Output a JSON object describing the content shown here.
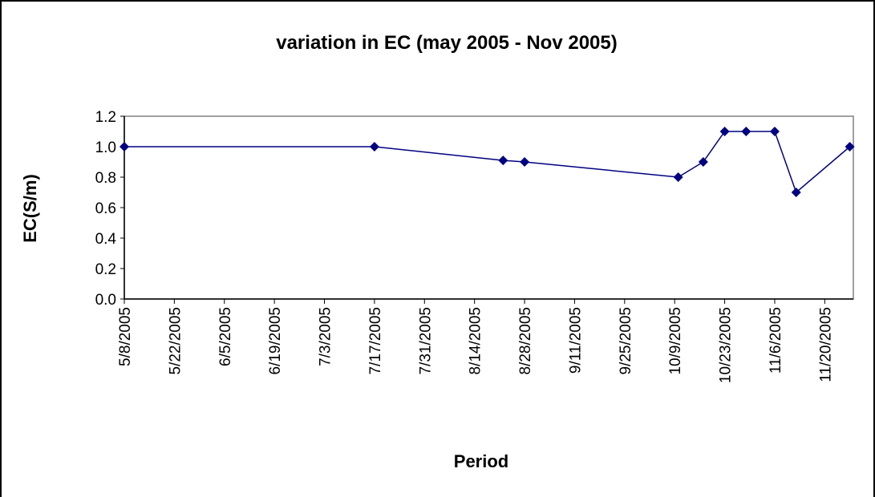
{
  "chart_data": {
    "type": "line",
    "title": "variation in EC (may 2005 - Nov 2005)",
    "x_label": "Period",
    "y_label": "EC(S/m)",
    "series": [
      {
        "name": "EC",
        "color": "#000080",
        "x": [
          "5/8/2005",
          "7/17/2005",
          "8/22/2005",
          "8/28/2005",
          "10/10/2005",
          "10/17/2005",
          "10/23/2005",
          "10/29/2005",
          "11/6/2005",
          "11/12/2005",
          "11/27/2005"
        ],
        "values": [
          1.0,
          1.0,
          0.91,
          0.9,
          0.8,
          0.9,
          1.1,
          1.1,
          1.1,
          0.7,
          1.0
        ]
      }
    ],
    "xlim": [
      "5/8/2005",
      "11/28/2005"
    ],
    "xticks": [
      "5/8/2005",
      "5/22/2005",
      "6/5/2005",
      "6/19/2005",
      "7/3/2005",
      "7/17/2005",
      "7/31/2005",
      "8/14/2005",
      "8/28/2005",
      "9/11/2005",
      "9/25/2005",
      "10/9/2005",
      "10/23/2005",
      "11/6/2005",
      "11/20/2005"
    ],
    "ylim": [
      0,
      1.2
    ],
    "yticks": [
      {
        "value": 0,
        "label": "0.0"
      },
      0.2,
      0.4,
      0.6,
      0.8,
      {
        "value": 1,
        "label": "1.0"
      },
      1.2
    ],
    "grid": false,
    "legend": false
  }
}
